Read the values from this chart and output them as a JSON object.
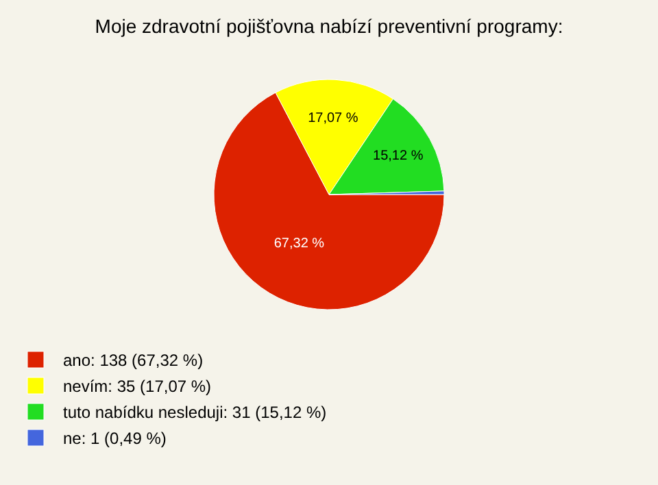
{
  "chart_data": {
    "type": "pie",
    "title": "Moje zdravotní pojišťovna nabízí preventivní programy:",
    "categories": [
      "ano: 138 (67,32 %)",
      "nevím: 35 (17,07 %)",
      "tuto nabídku nesleduji: 31 (15,12 %)",
      "ne: 1 (0,49 %)"
    ],
    "values": [
      67.32,
      17.07,
      15.12,
      0.49
    ],
    "value_labels": [
      "67,32 %",
      "17,07 %",
      "15,12 %",
      null
    ],
    "colors": [
      "#dd2200",
      "#ffff00",
      "#22dd22",
      "#4466dd"
    ],
    "legend": "bottom left"
  }
}
